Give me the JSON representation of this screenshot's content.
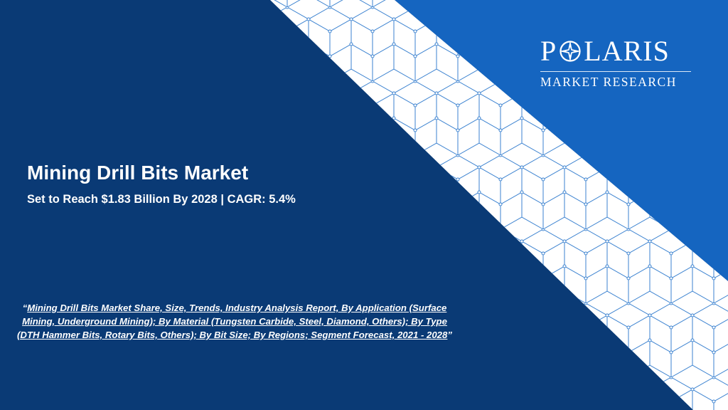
{
  "logo": {
    "letters_before_star": "P",
    "letters_after_star": "LARIS",
    "subtitle": "MARKET RESEARCH"
  },
  "title": "Mining Drill Bits Market",
  "subtitle": "Set to Reach $1.83 Billion By 2028 | CAGR: 5.4%",
  "quote": {
    "open_mark": "“",
    "text": "Mining Drill Bits Market Share, Size, Trends, Industry Analysis Report, By Application (Surface Mining, Underground Mining); By Material (Tungsten Carbide, Steel, Diamond, Others); By Type (DTH Hammer Bits, Rotary Bits, Others); By Bit Size; By Regions; Segment Forecast, 2021 - 2028",
    "close_mark": "”"
  },
  "colors": {
    "left_panel": "#0a3a75",
    "right_panel": "#1565c0",
    "band_line": "#3b82d0",
    "text": "#ffffff"
  },
  "icons": [
    "compass-star-icon"
  ]
}
